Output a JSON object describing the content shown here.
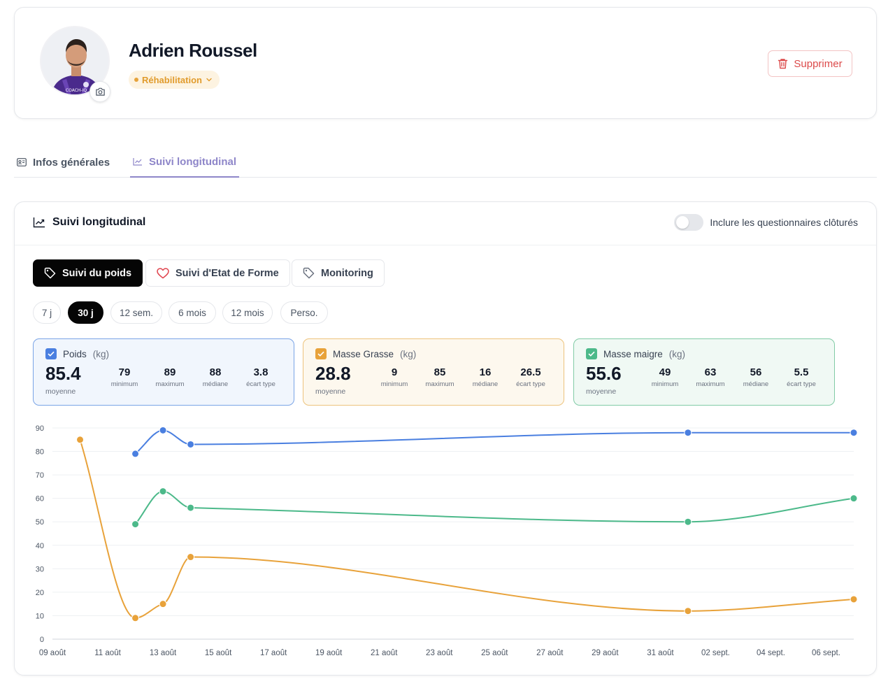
{
  "profile": {
    "name": "Adrien Roussel",
    "status": "Réhabilitation",
    "avatar_logo": "COACH-IQ",
    "delete_label": "Supprimer"
  },
  "tabs": [
    {
      "label": "Infos générales",
      "icon": "id-card-icon",
      "active": false
    },
    {
      "label": "Suivi longitudinal",
      "icon": "line-chart-icon",
      "active": true
    }
  ],
  "card": {
    "title": "Suivi longitudinal",
    "toggle_label": "Inclure les questionnaires clôturés",
    "toggle_on": false
  },
  "segments": [
    {
      "label": "Suivi du poids",
      "icon": "tag-icon",
      "active": true
    },
    {
      "label": "Suivi d'Etat de Forme",
      "icon": "heart-icon",
      "active": false
    },
    {
      "label": "Monitoring",
      "icon": "tag-icon",
      "active": false
    }
  ],
  "ranges": [
    {
      "label": "7 j",
      "active": false
    },
    {
      "label": "30 j",
      "active": true
    },
    {
      "label": "12 sem.",
      "active": false
    },
    {
      "label": "6 mois",
      "active": false
    },
    {
      "label": "12 mois",
      "active": false
    },
    {
      "label": "Perso.",
      "active": false
    }
  ],
  "metrics": [
    {
      "name": "Poids",
      "unit": "(kg)",
      "color": "#4a7fe0",
      "mean": "85.4",
      "mean_label": "moyenne",
      "stats": [
        {
          "v": "79",
          "l": "minimum"
        },
        {
          "v": "89",
          "l": "maximum"
        },
        {
          "v": "88",
          "l": "médiane"
        },
        {
          "v": "3.8",
          "l": "écart type"
        }
      ]
    },
    {
      "name": "Masse Grasse",
      "unit": "(kg)",
      "color": "#e8a23a",
      "mean": "28.8",
      "mean_label": "moyenne",
      "stats": [
        {
          "v": "9",
          "l": "minimum"
        },
        {
          "v": "85",
          "l": "maximum"
        },
        {
          "v": "16",
          "l": "médiane"
        },
        {
          "v": "26.5",
          "l": "écart type"
        }
      ]
    },
    {
      "name": "Masse maigre",
      "unit": "(kg)",
      "color": "#4cb98a",
      "mean": "55.6",
      "mean_label": "moyenne",
      "stats": [
        {
          "v": "49",
          "l": "minimum"
        },
        {
          "v": "63",
          "l": "maximum"
        },
        {
          "v": "56",
          "l": "médiane"
        },
        {
          "v": "5.5",
          "l": "écart type"
        }
      ]
    }
  ],
  "chart_data": {
    "type": "line",
    "title": "",
    "xlabel": "",
    "ylabel": "",
    "ylim": [
      0,
      90
    ],
    "yticks": [
      0,
      10,
      20,
      30,
      40,
      50,
      60,
      70,
      80,
      90
    ],
    "xlim": [
      "2024-08-09",
      "2024-09-07"
    ],
    "xtick_labels": [
      "09 août",
      "11 août",
      "13 août",
      "15 août",
      "17 août",
      "19 août",
      "21 août",
      "23 août",
      "25 août",
      "27 août",
      "29 août",
      "31 août",
      "02 sept.",
      "04 sept.",
      "06 sept."
    ],
    "grid": true,
    "legend": "none",
    "series": [
      {
        "color": "#4a7fe0",
        "points": [
          [
            "2024-08-12",
            79
          ],
          [
            "2024-08-13",
            89
          ],
          [
            "2024-08-14",
            83
          ],
          [
            "2024-09-01",
            88
          ],
          [
            "2024-09-07",
            88
          ]
        ]
      },
      {
        "color": "#4cb98a",
        "points": [
          [
            "2024-08-12",
            49
          ],
          [
            "2024-08-13",
            63
          ],
          [
            "2024-08-14",
            56
          ],
          [
            "2024-09-01",
            50
          ],
          [
            "2024-09-07",
            60
          ]
        ]
      },
      {
        "color": "#e8a23a",
        "points": [
          [
            "2024-08-10",
            85
          ],
          [
            "2024-08-12",
            9
          ],
          [
            "2024-08-13",
            15
          ],
          [
            "2024-08-14",
            35
          ],
          [
            "2024-09-01",
            12
          ],
          [
            "2024-09-07",
            17
          ]
        ]
      }
    ]
  }
}
